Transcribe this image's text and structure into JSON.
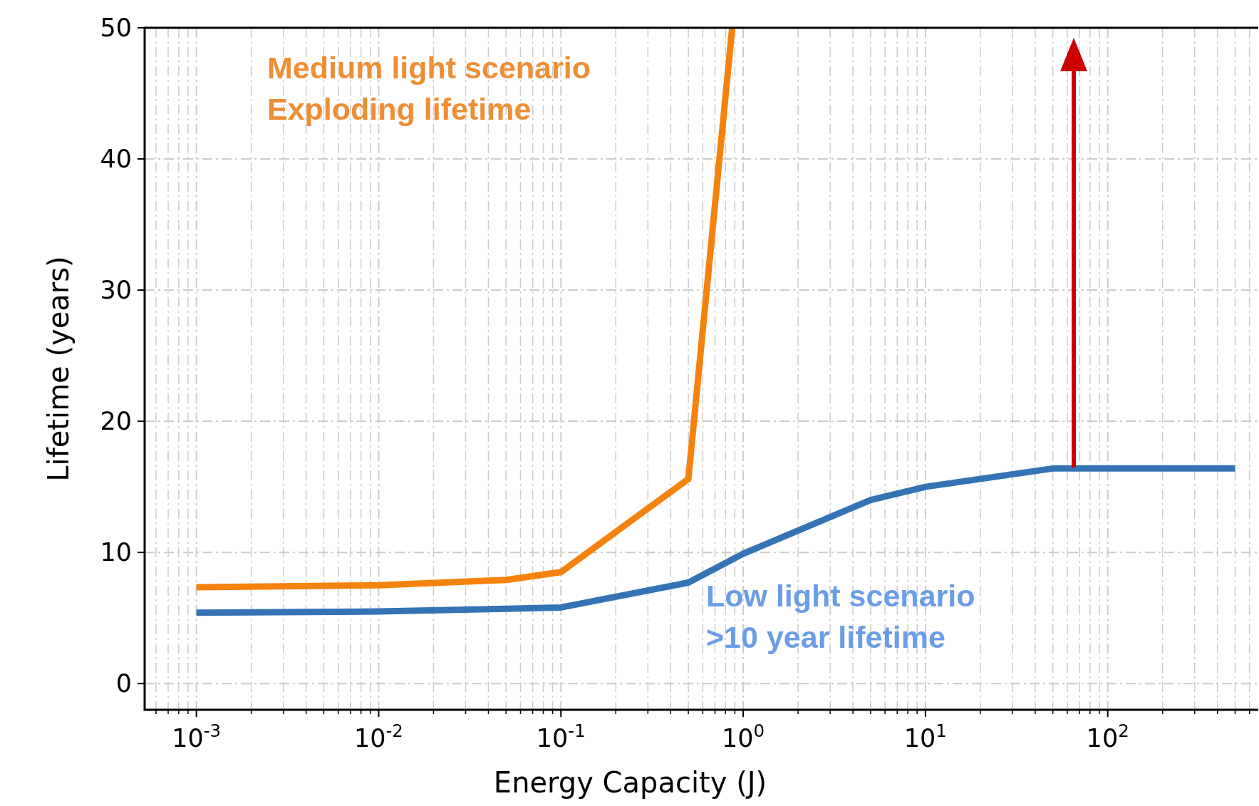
{
  "chart_data": {
    "type": "line",
    "xlabel": "Energy Capacity (J)",
    "ylabel": "Lifetime (years)",
    "log": "x",
    "grid": true,
    "line_style": "solid",
    "xlim": [
      0.00052,
      670
    ],
    "ylim": [
      -2,
      50
    ],
    "xticks": [
      {
        "value": 0.001,
        "label": "10$^{-3}$"
      },
      {
        "value": 0.01,
        "label": "10$^{-2}$"
      },
      {
        "value": 0.1,
        "label": "10$^{-1}$"
      },
      {
        "value": 1,
        "label": "10$^{0}$"
      },
      {
        "value": 10,
        "label": "10$^{1}$"
      },
      {
        "value": 100,
        "label": "10$^{2}$"
      }
    ],
    "yticks": [
      0,
      10,
      20,
      30,
      40,
      50
    ],
    "series": [
      {
        "color": "#f5820d",
        "x": [
          0.001,
          0.01,
          0.05,
          0.1,
          0.5,
          0.87
        ],
        "values": [
          7.35,
          7.5,
          7.9,
          8.5,
          15.6,
          50
        ]
      },
      {
        "color": "#3474b4",
        "x": [
          0.001,
          0.01,
          0.05,
          0.1,
          0.5,
          1,
          5,
          10,
          50,
          500
        ],
        "values": [
          5.4,
          5.5,
          5.7,
          5.8,
          7.7,
          9.9,
          14.0,
          15.0,
          16.4,
          16.4
        ]
      }
    ],
    "annotations": [
      "Medium light scenario\nExploding lifetime",
      "Low light scenario\n>10 year lifetime"
    ]
  }
}
